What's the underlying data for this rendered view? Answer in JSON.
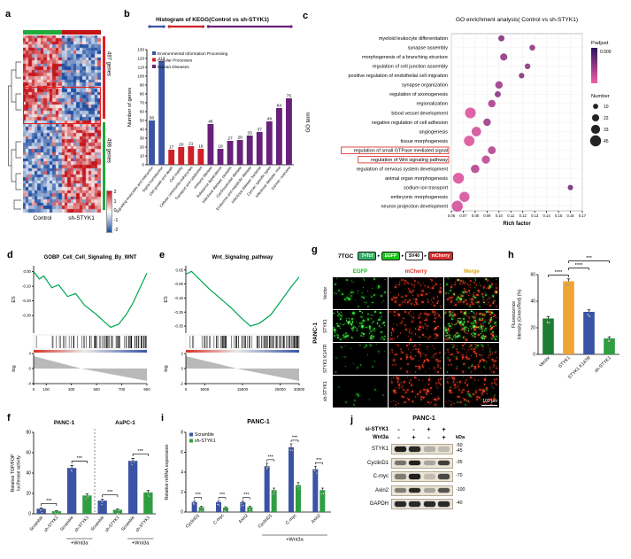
{
  "panels": {
    "a": {
      "label": "a",
      "columns": [
        {
          "name": "Control",
          "annotation_color": "#1faa3c"
        },
        {
          "name": "sh-STYK1",
          "annotation_color": "#c01313"
        }
      ],
      "gene_groups": [
        {
          "count": "497 genes",
          "bracket_color": "#e02020"
        },
        {
          "count": "498 genes",
          "bracket_color": "#1faa3c"
        }
      ],
      "colorbar_ticks": [
        "2",
        "1",
        "0",
        "-1",
        "-2"
      ]
    },
    "b": {
      "label": "b"
    },
    "c": {
      "label": "c"
    },
    "d": {
      "label": "d"
    },
    "e": {
      "label": "e"
    },
    "f": {
      "label": "f"
    },
    "g": {
      "label": "g",
      "construct_name": "7TGC",
      "construct_elements": [
        {
          "text": "7×Tcf",
          "fill": "#35b06a"
        },
        {
          "text": "EGFP",
          "fill": "#18c418"
        },
        {
          "text": "SV40",
          "fill": "#ffffff"
        },
        {
          "text": "mCherry",
          "fill": "#dd2c2c"
        }
      ],
      "cell_line": "PANC-1",
      "columns": [
        {
          "label": "EGFP",
          "color": "#1ab51a"
        },
        {
          "label": "mCherry",
          "color": "#e03322"
        },
        {
          "label": "Merge",
          "color": "#d9a400"
        }
      ],
      "rows": [
        {
          "label": "Vector",
          "egfp_level": "medium",
          "merge_green": "medium"
        },
        {
          "label": "STYK1",
          "egfp_level": "high",
          "merge_green": "high"
        },
        {
          "label": "STYK1 K147R",
          "egfp_level": "low",
          "merge_green": "low"
        },
        {
          "label": "sh-STYK1",
          "egfp_level": "verylow",
          "merge_green": "verylow"
        }
      ],
      "scale_bar_label": "100 μm"
    },
    "h": {
      "label": "h"
    },
    "i": {
      "label": "i"
    },
    "j": {
      "label": "j",
      "title": "PANC-1",
      "conditions": [
        {
          "name": "si-STYK1",
          "lanes": [
            "-",
            "-",
            "+",
            "+"
          ]
        },
        {
          "name": "Wnt3a",
          "lanes": [
            "-",
            "+",
            "-",
            "+"
          ]
        }
      ],
      "kda_header": "kDa",
      "blots": [
        {
          "protein": "STYK1",
          "kda": [
            "-50",
            "-45"
          ],
          "bands": [
            0.95,
            0.9,
            0.25,
            0.2
          ]
        },
        {
          "protein": "CyclinD1",
          "kda": [
            "-35"
          ],
          "bands": [
            0.55,
            0.95,
            0.3,
            0.8
          ]
        },
        {
          "protein": "C-myc",
          "kda": [
            "-70"
          ],
          "bands": [
            0.5,
            0.95,
            0.2,
            0.75
          ]
        },
        {
          "protein": "Axin2",
          "kda": [
            "-100"
          ],
          "bands": [
            0.5,
            0.9,
            0.3,
            0.7
          ]
        },
        {
          "protein": "GAPDH",
          "kda": [
            "-40"
          ],
          "bands": [
            0.9,
            0.9,
            0.9,
            0.9
          ]
        }
      ]
    }
  },
  "chart_data": [
    {
      "id": "heatmap_a",
      "type": "heatmap",
      "col_groups": [
        "Control",
        "sh-STYK1"
      ],
      "row_clusters": [
        {
          "label": "497 genes",
          "expression": "up in Control / down in sh-STYK1"
        },
        {
          "label": "498 genes",
          "expression": "down in Control / up in sh-STYK1"
        }
      ],
      "color_scale": {
        "ticks": [
          2,
          1,
          0,
          -1,
          -2
        ],
        "high": "#c3161c",
        "mid": "#ffffff",
        "low": "#1f4ea1"
      }
    },
    {
      "id": "kegg_b",
      "type": "bar",
      "title": "Histogram of KEGG(Control vs sh-STYK1)",
      "ylabel": "Number of genes",
      "ylim": [
        0,
        130
      ],
      "yticks": [
        0,
        10,
        20,
        30,
        40,
        50,
        60,
        70,
        80,
        90,
        100,
        110,
        120,
        130
      ],
      "legend": [
        {
          "label": "Environmental Information Processing",
          "color": "#3a53a4"
        },
        {
          "label": "Cellular Processes",
          "color": "#d02027"
        },
        {
          "label": "Human Diseases",
          "color": "#68217a"
        }
      ],
      "categories": [
        "Signaling molecules and interaction",
        "Signal transduction",
        "Cell growth and death",
        "Cell motility",
        "Cellular community-eukaryotes",
        "Transport and catabolism",
        "Immune disease",
        "Substance dependence",
        "Infectious disease: parasitic",
        "Cardiovascular disease",
        "Endocrine and metabolic disease",
        "Infectious disease: bacterial",
        "Cancer: specific types",
        "Infectious disease: viral",
        "Cancer: overview"
      ],
      "values": [
        50,
        117,
        17,
        20,
        21,
        18,
        46,
        18,
        27,
        28,
        33,
        37,
        49,
        64,
        75
      ],
      "group_index": [
        0,
        0,
        1,
        1,
        1,
        1,
        2,
        2,
        2,
        2,
        2,
        2,
        2,
        2,
        2
      ]
    },
    {
      "id": "go_c",
      "type": "scatter",
      "title": "GO enrichment analysis( Control vs sh-STYK1)",
      "xlabel": "Rich factor",
      "ylabel": "GO term",
      "xlim": [
        0.06,
        0.17
      ],
      "xticks": [
        0.06,
        0.07,
        0.08,
        0.09,
        0.1,
        0.11,
        0.12,
        0.13,
        0.14,
        0.15,
        0.16,
        0.17
      ],
      "padjust_legend": {
        "title": "Padjust",
        "tick": "0.000",
        "top_color": "#2c125f",
        "bottom_color": "#ef5fa7"
      },
      "number_legend": {
        "title": "Number",
        "sizes": [
          10,
          22,
          33,
          45
        ]
      },
      "terms": [
        {
          "name": "myeloid leukocyte differentiation",
          "rich_factor": 0.102,
          "number": 16,
          "padjust": 0.55,
          "highlighted": false
        },
        {
          "name": "synapse assembly",
          "rich_factor": 0.128,
          "number": 14,
          "padjust": 0.5,
          "highlighted": false
        },
        {
          "name": "morphogenesis of a branching structure",
          "rich_factor": 0.104,
          "number": 22,
          "padjust": 0.45,
          "highlighted": false
        },
        {
          "name": "regulation of cell junction assembly",
          "rich_factor": 0.124,
          "number": 13,
          "padjust": 0.5,
          "highlighted": false
        },
        {
          "name": "positive regulation of endothelial cell migration",
          "rich_factor": 0.119,
          "number": 12,
          "padjust": 0.55,
          "highlighted": false
        },
        {
          "name": "synapse organization",
          "rich_factor": 0.1,
          "number": 24,
          "padjust": 0.4,
          "highlighted": false
        },
        {
          "name": "regulation of axonogenesis",
          "rich_factor": 0.099,
          "number": 16,
          "padjust": 0.5,
          "highlighted": false
        },
        {
          "name": "regionalization",
          "rich_factor": 0.094,
          "number": 24,
          "padjust": 0.35,
          "highlighted": false
        },
        {
          "name": "blood vessel development",
          "rich_factor": 0.076,
          "number": 44,
          "padjust": 0.1,
          "highlighted": false
        },
        {
          "name": "negative regulation of cell adhesion",
          "rich_factor": 0.09,
          "number": 24,
          "padjust": 0.4,
          "highlighted": false
        },
        {
          "name": "angiogenesis",
          "rich_factor": 0.081,
          "number": 36,
          "padjust": 0.15,
          "highlighted": false
        },
        {
          "name": "tissue morphogenesis",
          "rich_factor": 0.075,
          "number": 42,
          "padjust": 0.1,
          "highlighted": false
        },
        {
          "name": "regulation of small GTPase mediated signal",
          "rich_factor": 0.094,
          "number": 26,
          "padjust": 0.3,
          "highlighted": true
        },
        {
          "name": "regulation of Wnt signaling pathway",
          "rich_factor": 0.089,
          "number": 28,
          "padjust": 0.25,
          "highlighted": true
        },
        {
          "name": "regulation of nervous system development",
          "rich_factor": 0.08,
          "number": 30,
          "padjust": 0.3,
          "highlighted": false
        },
        {
          "name": "animal organ morphogenesis",
          "rich_factor": 0.066,
          "number": 45,
          "padjust": 0.1,
          "highlighted": false
        },
        {
          "name": "sodium ion transport",
          "rich_factor": 0.16,
          "number": 11,
          "padjust": 0.6,
          "highlighted": false
        },
        {
          "name": "embryonic morphogenesis",
          "rich_factor": 0.071,
          "number": 40,
          "padjust": 0.12,
          "highlighted": false
        },
        {
          "name": "neuron projection development",
          "rich_factor": 0.065,
          "number": 45,
          "padjust": 0.15,
          "highlighted": false
        }
      ]
    },
    {
      "id": "gsea_d",
      "type": "line",
      "title": "GOBP_Cell_Cell_Signaling_By_WNT",
      "es_label": "ES",
      "es_ticks": [
        0,
        -0.1,
        -0.2,
        -0.3
      ],
      "es_range": [
        0.04,
        -0.42
      ],
      "curve": [
        [
          0,
          0
        ],
        [
          0.05,
          -0.05
        ],
        [
          0.09,
          -0.03
        ],
        [
          0.16,
          -0.11
        ],
        [
          0.22,
          -0.09
        ],
        [
          0.3,
          -0.17
        ],
        [
          0.37,
          -0.15
        ],
        [
          0.45,
          -0.23
        ],
        [
          0.55,
          -0.29
        ],
        [
          0.62,
          -0.34
        ],
        [
          0.68,
          -0.38
        ],
        [
          0.75,
          -0.36
        ],
        [
          0.82,
          -0.29
        ],
        [
          0.88,
          -0.21
        ],
        [
          0.94,
          -0.11
        ],
        [
          1,
          -0.01
        ]
      ],
      "rank_label": "log",
      "rank_ticks": [
        "4",
        "0",
        "-4"
      ],
      "xticks": [
        "0",
        "100",
        "300",
        "500",
        "700",
        "900"
      ],
      "xtick_values": [
        0,
        100,
        300,
        500,
        700,
        900
      ],
      "x_max": 900,
      "cross_frac": 0.42,
      "bar_count": 80
    },
    {
      "id": "gsea_e",
      "type": "line",
      "title": "Wnt_Signaling_pathway",
      "es_label": "ES",
      "es_ticks": [
        0.05,
        -0.05,
        -0.15,
        -0.25,
        -0.35
      ],
      "es_range": [
        0.08,
        -0.4
      ],
      "curve": [
        [
          0,
          0.02
        ],
        [
          0.05,
          0.04
        ],
        [
          0.1,
          0
        ],
        [
          0.2,
          -0.08
        ],
        [
          0.3,
          -0.15
        ],
        [
          0.4,
          -0.22
        ],
        [
          0.5,
          -0.3
        ],
        [
          0.57,
          -0.35
        ],
        [
          0.65,
          -0.33
        ],
        [
          0.75,
          -0.27
        ],
        [
          0.85,
          -0.16
        ],
        [
          0.93,
          -0.07
        ],
        [
          1,
          0
        ]
      ],
      "rank_label": "log",
      "rank_ticks": [
        "2",
        "0",
        "-2"
      ],
      "xticks": [
        "0",
        "5000",
        "15000",
        "25000",
        "30000"
      ],
      "xtick_values": [
        0,
        5000,
        15000,
        25000,
        30000
      ],
      "x_max": 30000,
      "cross_frac": 0.45,
      "bar_count": 110
    },
    {
      "id": "topfop_f",
      "type": "bar",
      "ylabel": "Relative TOP/FOP luciferase activity",
      "ylim": [
        0,
        80
      ],
      "yticks": [
        0,
        20,
        40,
        60,
        80
      ],
      "cell_lines": [
        "PANC-1",
        "AsPC-1"
      ],
      "series": [
        {
          "name": "Scramble",
          "color": "#3a53a4"
        },
        {
          "name": "sh-STYK1",
          "color": "#2f9e41"
        }
      ],
      "categories": [
        "Scramble",
        "sh-STYK1",
        "Scramble",
        "sh-STYK1",
        "Scramble",
        "sh-STYK1",
        "Scramble",
        "sh-STYK1"
      ],
      "values": [
        5,
        2.5,
        45,
        18,
        13,
        4,
        52,
        21
      ],
      "errors": [
        0.8,
        0.5,
        2.5,
        1.5,
        1.2,
        0.7,
        2.5,
        1.8
      ],
      "series_index": [
        0,
        1,
        0,
        1,
        0,
        1,
        0,
        1
      ],
      "wnt3a_labels": [
        {
          "text": "+Wnt3a",
          "from": 2,
          "to": 3
        },
        {
          "text": "+Wnt3a",
          "from": 6,
          "to": 7
        }
      ],
      "sig": [
        {
          "from": 0,
          "to": 1,
          "label": "***"
        },
        {
          "from": 2,
          "to": 3,
          "label": "***"
        },
        {
          "from": 4,
          "to": 5,
          "label": "***"
        },
        {
          "from": 6,
          "to": 7,
          "label": "***"
        }
      ]
    },
    {
      "id": "fluor_h",
      "type": "bar",
      "ylabel": "Fluorescence Intensity (Green/Red) (%)",
      "ylim": [
        0,
        60
      ],
      "yticks": [
        0,
        20,
        40,
        60
      ],
      "categories": [
        "Vector",
        "STYK1",
        "STYK1 K147R",
        "sh-STYK1"
      ],
      "values": [
        27,
        55,
        32,
        12
      ],
      "errors": [
        1.5,
        1.8,
        1.5,
        1.2
      ],
      "colors": [
        "#1e7d33",
        "#f0a435",
        "#3a53a4",
        "#2f9e41"
      ],
      "sig": [
        {
          "from": 0,
          "to": 1,
          "label": "****",
          "level": 0
        },
        {
          "from": 1,
          "to": 2,
          "label": "****",
          "level": 1
        },
        {
          "from": 1,
          "to": 3,
          "label": "***",
          "level": 2
        }
      ]
    },
    {
      "id": "mrna_i",
      "type": "bar",
      "title": "PANC-1",
      "ylabel": "Relative mRNA expression",
      "ylim": [
        0,
        8
      ],
      "yticks": [
        0,
        2,
        4,
        6,
        8
      ],
      "series": [
        {
          "name": "Scramble",
          "color": "#3a53a4"
        },
        {
          "name": "sh-STYK1",
          "color": "#2f9e41"
        }
      ],
      "categories": [
        "CyclinD1",
        "C-myc",
        "Axin2",
        "CyclinD1",
        "C-myc",
        "Axin2"
      ],
      "scramble_values": [
        1,
        1,
        1,
        4.6,
        6.5,
        4.3
      ],
      "sh_values": [
        0.5,
        0.45,
        0.5,
        2.2,
        2.7,
        2.2
      ],
      "scramble_errors": [
        0.1,
        0.1,
        0.1,
        0.3,
        0.35,
        0.3
      ],
      "sh_errors": [
        0.08,
        0.08,
        0.08,
        0.2,
        0.25,
        0.2
      ],
      "wnt3a_label": {
        "text": "+Wnt3a",
        "from": 3,
        "to": 5
      },
      "sig": [
        "***",
        "***",
        "***",
        "***",
        "***",
        "***"
      ]
    }
  ]
}
